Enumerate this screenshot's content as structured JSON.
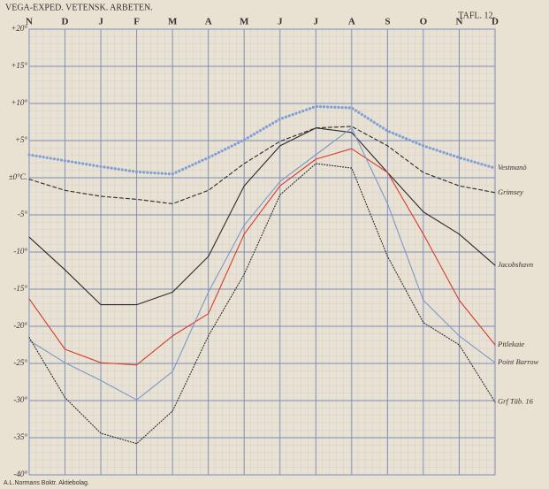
{
  "header": {
    "title": "VEGA-EXPED. VETENSK. ARBETEN.",
    "plate": "TAFL. 12."
  },
  "footer": "A.L.Normans Boktr. Aktiebolag.",
  "chart_data": {
    "type": "line",
    "categories": [
      "N",
      "D",
      "J",
      "F",
      "M",
      "A",
      "M",
      "J",
      "J",
      "A",
      "S",
      "O",
      "N",
      "D"
    ],
    "ylim": [
      -40,
      20
    ],
    "yticks": [
      {
        "value": 20,
        "label": "+20°"
      },
      {
        "value": 15,
        "label": "+15°"
      },
      {
        "value": 10,
        "label": "+10°"
      },
      {
        "value": 5,
        "label": "+5°"
      },
      {
        "value": 0,
        "label": "±0°C."
      },
      {
        "value": -5,
        "label": "-5°"
      },
      {
        "value": -10,
        "label": "-10°"
      },
      {
        "value": -15,
        "label": "-15°"
      },
      {
        "value": -20,
        "label": "-20°"
      },
      {
        "value": -25,
        "label": "-25°"
      },
      {
        "value": -30,
        "label": "-30°"
      },
      {
        "value": -35,
        "label": "-35°"
      },
      {
        "value": -40,
        "label": "-40°"
      }
    ],
    "grid": true,
    "series": [
      {
        "name": "Vestmanö",
        "color": "#7f9fd6",
        "dash": "dots",
        "values": [
          3.1,
          2.3,
          1.5,
          0.8,
          0.5,
          2.7,
          5.1,
          7.9,
          9.6,
          9.4,
          6.3,
          4.3,
          2.7,
          1.3
        ]
      },
      {
        "name": "Grimsey",
        "color": "#2a2a2a",
        "dash": "dashed",
        "values": [
          -0.2,
          -1.7,
          -2.5,
          -2.9,
          -3.5,
          -1.7,
          1.9,
          4.9,
          6.7,
          6.9,
          4.3,
          0.7,
          -1.1,
          -2.0
        ]
      },
      {
        "name": "Jacobshavn",
        "color": "#2a2a2a",
        "dash": "solid",
        "values": [
          -8.0,
          -12.4,
          -17.1,
          -17.1,
          -15.4,
          -10.6,
          -1.1,
          4.3,
          6.7,
          6.1,
          0.7,
          -4.6,
          -7.6,
          -11.8
        ]
      },
      {
        "name": "Pitlekaie",
        "color": "#d83a2a",
        "dash": "solid",
        "values": [
          -16.3,
          -23.1,
          -24.9,
          -25.2,
          -21.3,
          -18.3,
          -7.6,
          -1.1,
          2.5,
          3.9,
          0.7,
          -7.6,
          -16.5,
          -22.5
        ]
      },
      {
        "name": "Point Barrow",
        "color": "#7c98c8",
        "dash": "solid",
        "values": [
          -21.9,
          -24.9,
          -27.3,
          -29.9,
          -26.1,
          -15.4,
          -6.4,
          -0.5,
          3.1,
          6.7,
          -3.5,
          -16.5,
          -21.3,
          -24.9
        ]
      },
      {
        "name": "Grf Täb. 16",
        "color": "#2a2a2a",
        "dash": "dotted",
        "values": [
          -21.5,
          -29.6,
          -34.4,
          -35.8,
          -31.4,
          -21.3,
          -13.0,
          -2.3,
          1.9,
          1.3,
          -10.6,
          -19.5,
          -22.5,
          -30.2
        ]
      }
    ]
  }
}
